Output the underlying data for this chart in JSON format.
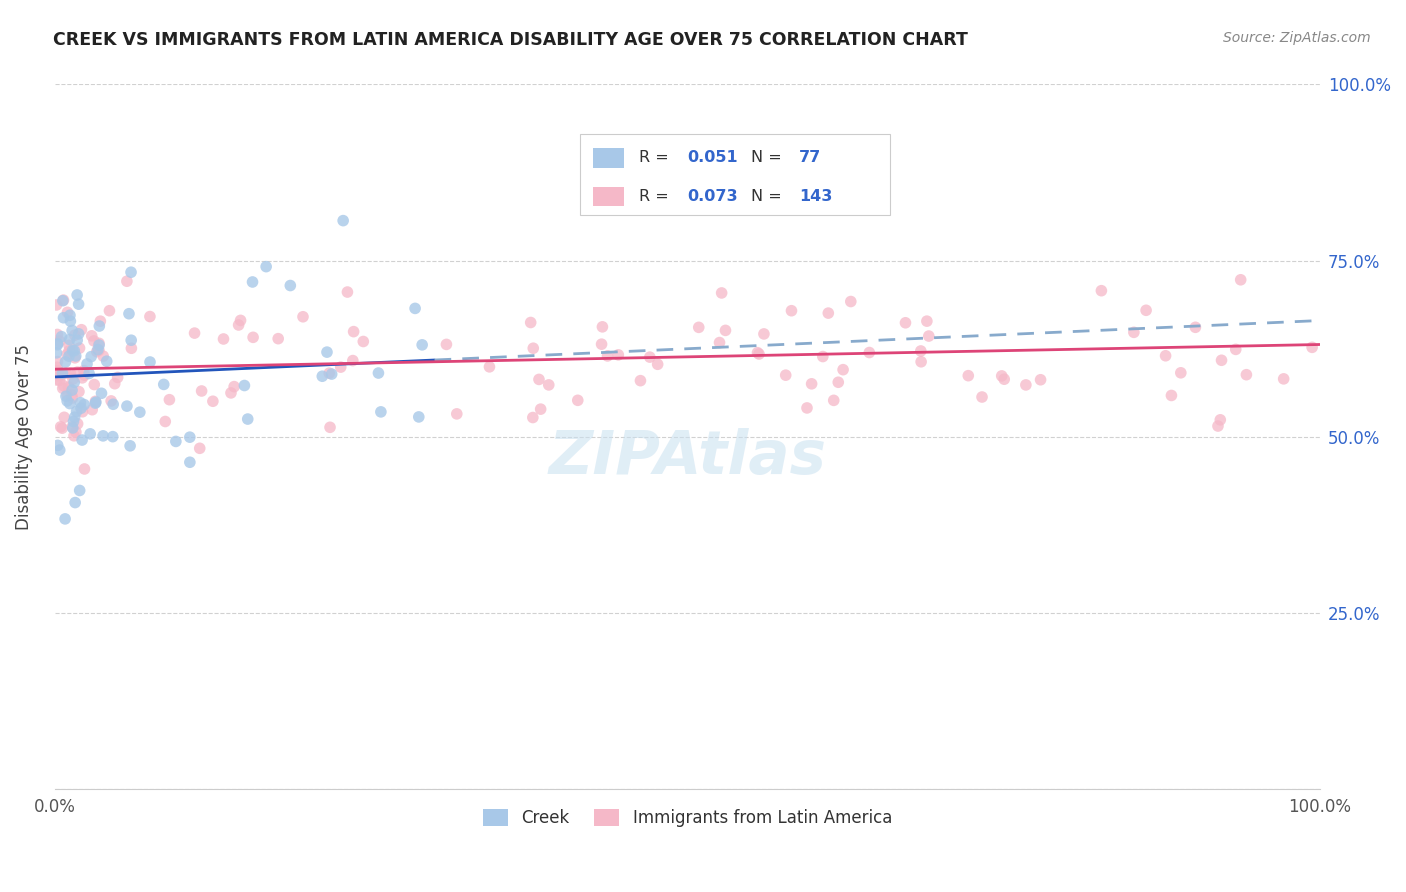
{
  "title": "CREEK VS IMMIGRANTS FROM LATIN AMERICA DISABILITY AGE OVER 75 CORRELATION CHART",
  "source": "Source: ZipAtlas.com",
  "ylabel": "Disability Age Over 75",
  "legend_label1": "Creek",
  "legend_label2": "Immigrants from Latin America",
  "legend_r1": "0.051",
  "legend_n1": "77",
  "legend_r2": "0.073",
  "legend_n2": "143",
  "color_creek": "#a8c8e8",
  "color_latin": "#f5b8c8",
  "color_blue_text": "#3366cc",
  "trend_creek_color": "#2255bb",
  "trend_creek_dash_color": "#88aacc",
  "trend_latin_color": "#dd4477",
  "background_color": "#ffffff",
  "grid_color": "#cccccc",
  "watermark_color": "#c8e0f0"
}
